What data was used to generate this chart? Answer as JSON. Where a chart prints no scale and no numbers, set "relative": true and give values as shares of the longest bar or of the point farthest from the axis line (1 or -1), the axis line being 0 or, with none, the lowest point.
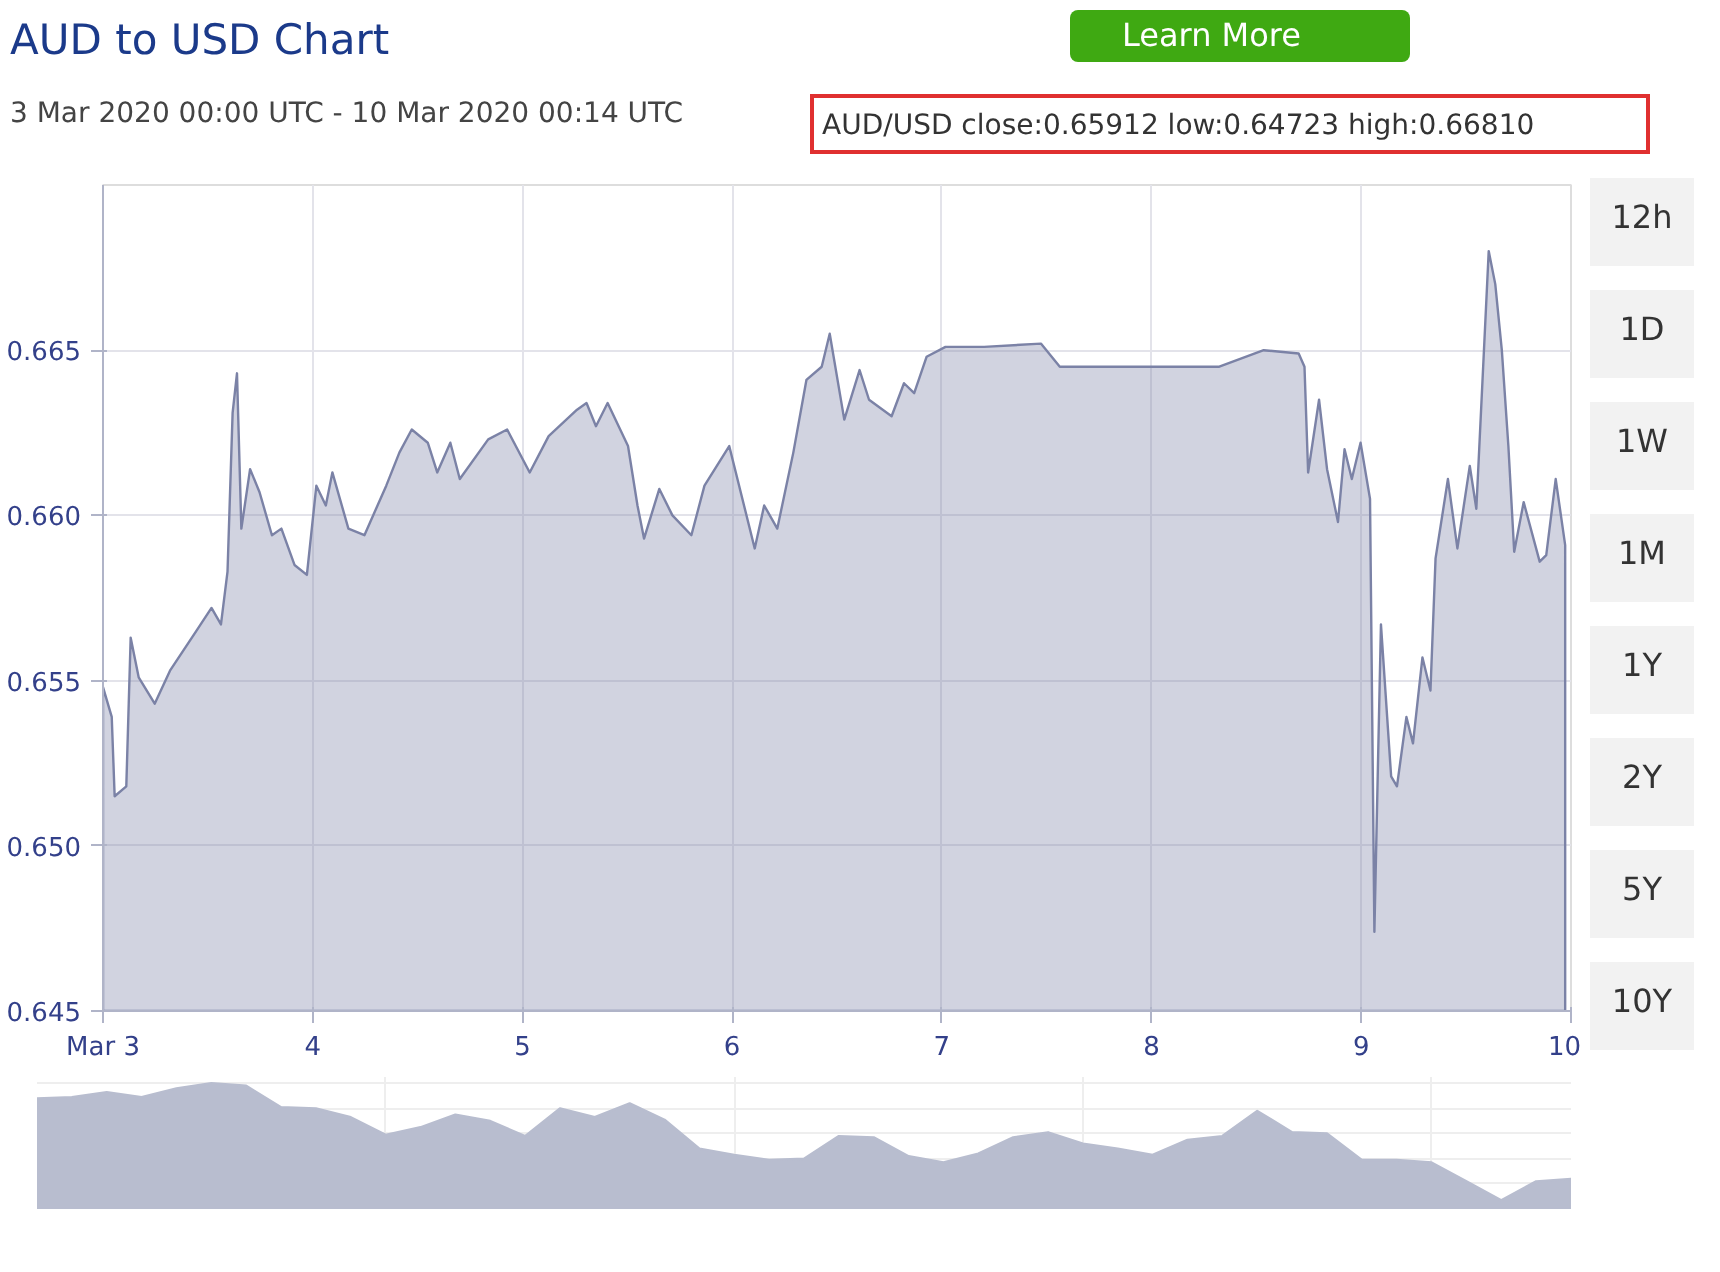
{
  "chart_data": [
    {
      "type": "area",
      "title": "AUD to USD Chart",
      "subtitle": "3 Mar 2020 00:00 UTC - 10 Mar 2020 00:14 UTC",
      "annotations": [
        "AUD/USD close:0.65912 low:0.64723 high:0.66810",
        "12h",
        "1D",
        "1W",
        "1M",
        "1Y",
        "2Y",
        "5Y",
        "10Y",
        "Learn More"
      ],
      "x": [
        "2020-03-03T00:00",
        "2020-03-03T01:00",
        "2020-03-03T01:20",
        "2020-03-03T02:40",
        "2020-03-03T03:10",
        "2020-03-03T04:05",
        "2020-03-03T05:55",
        "2020-03-03T07:40",
        "2020-03-03T10:40",
        "2020-03-03T12:25",
        "2020-03-03T13:30",
        "2020-03-03T14:15",
        "2020-03-03T14:50",
        "2020-03-03T15:20",
        "2020-03-03T15:50",
        "2020-03-03T16:50",
        "2020-03-03T17:55",
        "2020-03-03T19:20",
        "2020-03-03T20:25",
        "2020-03-03T21:55",
        "2020-03-03T23:20",
        "2020-03-04T00:25",
        "2020-03-04T01:30",
        "2020-03-04T02:15",
        "2020-03-04T04:05",
        "2020-03-04T05:55",
        "2020-03-04T08:25",
        "2020-03-04T09:55",
        "2020-03-04T11:20",
        "2020-03-04T13:10",
        "2020-03-04T14:15",
        "2020-03-04T15:45",
        "2020-03-04T16:50",
        "2020-03-04T20:05",
        "2020-03-04T22:15",
        "2020-03-05T00:50",
        "2020-03-05T03:00",
        "2020-03-05T06:15",
        "2020-03-05T07:20",
        "2020-03-05T08:25",
        "2020-03-05T09:45",
        "2020-03-05T12:05",
        "2020-03-05T13:10",
        "2020-03-05T13:55",
        "2020-03-05T15:40",
        "2020-03-05T17:10",
        "2020-03-05T19:20",
        "2020-03-05T20:50",
        "2020-03-05T23:40",
        "2020-03-06T02:35",
        "2020-03-06T03:40",
        "2020-03-06T05:10",
        "2020-03-06T07:00",
        "2020-03-06T08:30",
        "2020-03-06T10:15",
        "2020-03-06T11:10",
        "2020-03-06T12:50",
        "2020-03-06T14:35",
        "2020-03-06T15:40",
        "2020-03-06T18:15",
        "2020-03-06T19:40",
        "2020-03-06T20:50",
        "2020-03-06T22:15",
        "2020-03-07T00:25",
        "2020-03-07T04:50",
        "2020-03-07T11:20",
        "2020-03-07T13:30",
        "2020-03-07T17:55",
        "2020-03-07T20:50",
        "2020-03-08T07:45",
        "2020-03-08T12:50",
        "2020-03-08T16:50",
        "2020-03-08T17:30",
        "2020-03-08T17:55",
        "2020-03-08T19:10",
        "2020-03-08T20:05",
        "2020-03-08T21:20",
        "2020-03-08T22:05",
        "2020-03-08T22:55",
        "2020-03-08T23:55",
        "2020-03-09T01:00",
        "2020-03-09T01:30",
        "2020-03-09T02:15",
        "2020-03-09T03:25",
        "2020-03-09T04:05",
        "2020-03-09T05:10",
        "2020-03-09T05:55",
        "2020-03-09T07:00",
        "2020-03-09T07:55",
        "2020-03-09T08:30",
        "2020-03-09T09:55",
        "2020-03-09T11:00",
        "2020-03-09T12:25",
        "2020-03-09T13:10",
        "2020-03-09T14:35",
        "2020-03-09T15:20",
        "2020-03-09T16:05",
        "2020-03-09T16:50",
        "2020-03-09T17:30",
        "2020-03-09T18:35",
        "2020-03-09T20:25",
        "2020-03-09T21:10",
        "2020-03-09T22:15",
        "2020-03-09T23:20"
      ],
      "values": [
        0.6548,
        0.6539,
        0.6515,
        0.6518,
        0.6563,
        0.6551,
        0.6543,
        0.6553,
        0.6565,
        0.6572,
        0.6567,
        0.6583,
        0.6631,
        0.6643,
        0.6596,
        0.6614,
        0.6607,
        0.6594,
        0.6596,
        0.6585,
        0.6582,
        0.6609,
        0.6603,
        0.6613,
        0.6596,
        0.6594,
        0.6609,
        0.6619,
        0.6626,
        0.6622,
        0.6613,
        0.6622,
        0.6611,
        0.6623,
        0.6626,
        0.6613,
        0.6624,
        0.6632,
        0.6634,
        0.6627,
        0.6634,
        0.6621,
        0.6603,
        0.6593,
        0.6608,
        0.66,
        0.6594,
        0.6609,
        0.6621,
        0.659,
        0.6603,
        0.6596,
        0.6619,
        0.6641,
        0.6645,
        0.6655,
        0.6629,
        0.6644,
        0.6635,
        0.663,
        0.664,
        0.6637,
        0.6648,
        0.6651,
        0.6651,
        0.6652,
        0.6645,
        0.6645,
        0.6645,
        0.6645,
        0.665,
        0.6649,
        0.6645,
        0.6613,
        0.6635,
        0.6614,
        0.6598,
        0.662,
        0.6611,
        0.6622,
        0.6605,
        0.6474,
        0.6567,
        0.6521,
        0.6518,
        0.6539,
        0.6531,
        0.6557,
        0.6547,
        0.6587,
        0.6611,
        0.659,
        0.6615,
        0.6602,
        0.668,
        0.667,
        0.665,
        0.6621,
        0.6589,
        0.6604,
        0.6586,
        0.6588,
        0.6611,
        0.6591
      ],
      "color": "#7b82a6",
      "xlim": [
        "2020-03-03T00:00",
        "2020-03-10T00:00"
      ],
      "xticks": [
        {
          "value": "2020-03-03",
          "label": "Mar 3"
        },
        {
          "value": "2020-03-04",
          "label": "4"
        },
        {
          "value": "2020-03-05",
          "label": "5"
        },
        {
          "value": "2020-03-06",
          "label": "6"
        },
        {
          "value": "2020-03-07",
          "label": "7"
        },
        {
          "value": "2020-03-08",
          "label": "8"
        },
        {
          "value": "2020-03-09",
          "label": "9"
        },
        {
          "value": "2020-03-10",
          "label": "10"
        }
      ],
      "ylim": [
        0.645,
        0.67
      ],
      "yticks": [
        0.645,
        {
          "value": 0.65,
          "label": "0.650"
        },
        0.655,
        {
          "value": 0.66,
          "label": "0.660"
        },
        0.665
      ],
      "grid": true
    },
    {
      "type": "area",
      "relative": true,
      "color": "#b8bdcf",
      "grid": true,
      "categories": [
        null,
        null,
        null,
        null,
        null,
        null,
        null,
        null,
        null,
        null,
        null,
        null,
        null,
        null,
        null,
        null,
        null,
        null,
        null,
        null,
        null,
        null,
        null,
        null,
        null,
        null,
        null,
        null,
        null,
        null,
        null,
        null,
        null,
        null,
        null,
        null,
        null,
        null,
        null,
        null,
        null,
        null,
        null,
        null,
        null
      ],
      "values": [
        0.88,
        0.89,
        0.93,
        0.89,
        0.96,
        1,
        0.98,
        0.81,
        0.8,
        0.73,
        0.59,
        0.65,
        0.75,
        0.7,
        0.58,
        0.8,
        0.73,
        0.84,
        0.71,
        0.48,
        0.43,
        0.39,
        0.4,
        0.58,
        0.57,
        0.42,
        0.37,
        0.44,
        0.57,
        0.61,
        0.52,
        0.48,
        0.43,
        0.55,
        0.58,
        0.78,
        0.61,
        0.6,
        0.39,
        0.39,
        0.37,
        0.22,
        0.07,
        0.22,
        0.24
      ]
    }
  ]
}
